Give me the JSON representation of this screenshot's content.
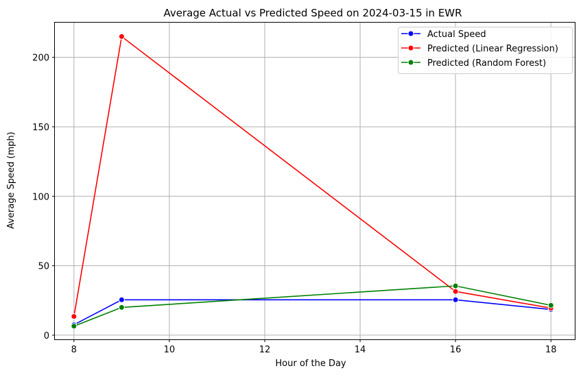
{
  "chart_data": {
    "type": "line",
    "title": "Average Actual vs Predicted Speed on 2024-03-15 in EWR",
    "xlabel": "Hour of the Day",
    "ylabel": "Average Speed (mph)",
    "xlim": [
      7.6,
      18.5
    ],
    "ylim": [
      -3,
      225
    ],
    "xticks": [
      8,
      10,
      12,
      14,
      16,
      18
    ],
    "yticks": [
      0,
      50,
      100,
      150,
      200
    ],
    "grid": true,
    "legend_position": "top-right",
    "series": [
      {
        "name": "Actual Speed",
        "color": "#0000ff",
        "x": [
          8,
          9,
          16,
          18
        ],
        "y": [
          7.5,
          25.5,
          25.5,
          18.5
        ]
      },
      {
        "name": "Predicted (Linear Regression)",
        "color": "#ff0000",
        "x": [
          8,
          9,
          16,
          18
        ],
        "y": [
          13.5,
          215,
          31.5,
          19.5
        ]
      },
      {
        "name": "Predicted (Random Forest)",
        "color": "#008000",
        "x": [
          8,
          9,
          16,
          18
        ],
        "y": [
          6.5,
          20,
          35.5,
          21.5
        ]
      }
    ]
  }
}
